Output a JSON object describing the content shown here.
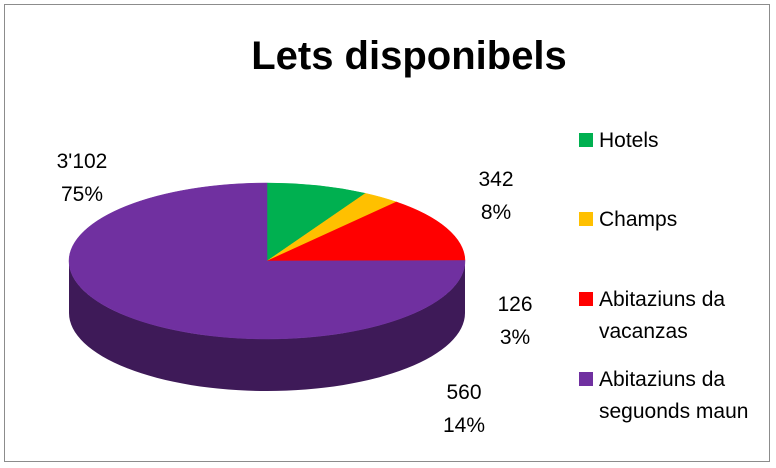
{
  "chart_data": {
    "type": "pie",
    "title": "Lets disponibels",
    "three_d": true,
    "legend_position": "right",
    "slices": [
      {
        "name": "Hotels",
        "value": 342,
        "percent": "8%",
        "value_label": "342",
        "color": "#00b050"
      },
      {
        "name": "Champs",
        "value": 126,
        "percent": "3%",
        "value_label": "126",
        "color": "#ffc000"
      },
      {
        "name": "Abitaziuns da vacanzas",
        "value": 560,
        "percent": "14%",
        "value_label": "560",
        "color": "#ff0000"
      },
      {
        "name": "Abitaziuns da seguonds maun",
        "value": 3102,
        "percent": "75%",
        "value_label": "3'102",
        "color": "#7030a0"
      }
    ]
  }
}
